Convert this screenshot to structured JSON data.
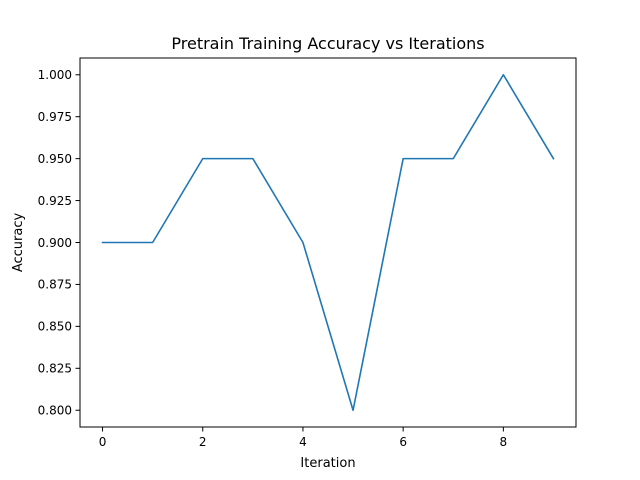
{
  "chart_data": {
    "type": "line",
    "title": "Pretrain Training Accuracy vs Iterations",
    "xlabel": "Iteration",
    "ylabel": "Accuracy",
    "x": [
      0,
      1,
      2,
      3,
      4,
      5,
      6,
      7,
      8,
      9
    ],
    "series": [
      {
        "values": [
          0.9,
          0.9,
          0.95,
          0.95,
          0.9,
          0.8,
          0.95,
          0.95,
          1.0,
          0.95
        ],
        "color": "#1f77b4"
      }
    ],
    "xlim": [
      -0.45,
      9.45
    ],
    "ylim": [
      0.79,
      1.01
    ],
    "xticks": [
      0,
      2,
      4,
      6,
      8
    ],
    "xtick_labels": [
      "0",
      "2",
      "4",
      "6",
      "8"
    ],
    "yticks": [
      0.8,
      0.825,
      0.85,
      0.875,
      0.9,
      0.925,
      0.95,
      0.975,
      1.0
    ],
    "ytick_labels": [
      "0.800",
      "0.825",
      "0.850",
      "0.875",
      "0.900",
      "0.925",
      "0.950",
      "0.975",
      "1.000"
    ],
    "grid": false,
    "legend": false
  }
}
